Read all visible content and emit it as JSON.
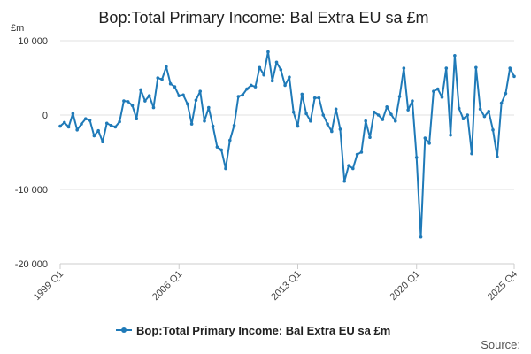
{
  "chart_data": {
    "type": "line",
    "title": "Bop:Total Primary Income: Bal Extra EU sa £m",
    "ylabel": "£m",
    "xlabel": "",
    "ylim": [
      -20000,
      10000
    ],
    "yticks": [
      10000,
      0,
      -10000,
      -20000
    ],
    "ytick_labels": [
      "10 000",
      "0",
      "-10 000",
      "-20 000"
    ],
    "xticks": [
      {
        "category": "1999 Q1",
        "label": "1999 Q1"
      },
      {
        "category": "2006 Q1",
        "label": "2006 Q1"
      },
      {
        "category": "2013 Q1",
        "label": "2013 Q1"
      },
      {
        "category": "2020 Q1",
        "label": "2020 Q1"
      },
      {
        "category": "2025 Q4",
        "label": "2025 Q4"
      }
    ],
    "grid": true,
    "legend": "bottom",
    "line_color": "#1f7ab8",
    "categories": [
      "1999 Q1",
      "1999 Q2",
      "1999 Q3",
      "1999 Q4",
      "2000 Q1",
      "2000 Q2",
      "2000 Q3",
      "2000 Q4",
      "2001 Q1",
      "2001 Q2",
      "2001 Q3",
      "2001 Q4",
      "2002 Q1",
      "2002 Q2",
      "2002 Q3",
      "2002 Q4",
      "2003 Q1",
      "2003 Q2",
      "2003 Q3",
      "2003 Q4",
      "2004 Q1",
      "2004 Q2",
      "2004 Q3",
      "2004 Q4",
      "2005 Q1",
      "2005 Q2",
      "2005 Q3",
      "2005 Q4",
      "2006 Q1",
      "2006 Q2",
      "2006 Q3",
      "2006 Q4",
      "2007 Q1",
      "2007 Q2",
      "2007 Q3",
      "2007 Q4",
      "2008 Q1",
      "2008 Q2",
      "2008 Q3",
      "2008 Q4",
      "2009 Q1",
      "2009 Q2",
      "2009 Q3",
      "2009 Q4",
      "2010 Q1",
      "2010 Q2",
      "2010 Q3",
      "2010 Q4",
      "2011 Q1",
      "2011 Q2",
      "2011 Q3",
      "2011 Q4",
      "2012 Q1",
      "2012 Q2",
      "2012 Q3",
      "2012 Q4",
      "2013 Q1",
      "2013 Q2",
      "2013 Q3",
      "2013 Q4",
      "2014 Q1",
      "2014 Q2",
      "2014 Q3",
      "2014 Q4",
      "2015 Q1",
      "2015 Q2",
      "2015 Q3",
      "2015 Q4",
      "2016 Q1",
      "2016 Q2",
      "2016 Q3",
      "2016 Q4",
      "2017 Q1",
      "2017 Q2",
      "2017 Q3",
      "2017 Q4",
      "2018 Q1",
      "2018 Q2",
      "2018 Q3",
      "2018 Q4",
      "2019 Q1",
      "2019 Q2",
      "2019 Q3",
      "2019 Q4",
      "2020 Q1",
      "2020 Q2",
      "2020 Q3",
      "2020 Q4",
      "2021 Q1",
      "2021 Q2",
      "2021 Q3",
      "2021 Q4",
      "2022 Q1",
      "2022 Q2",
      "2022 Q3",
      "2022 Q4",
      "2023 Q1",
      "2023 Q2",
      "2023 Q3",
      "2023 Q4",
      "2024 Q1",
      "2024 Q2",
      "2024 Q3",
      "2024 Q4",
      "2025 Q1",
      "2025 Q2",
      "2025 Q3",
      "2025 Q4"
    ],
    "series": [
      {
        "name": "Bop:Total Primary Income: Bal Extra EU sa £m",
        "values": [
          -1500,
          -1000,
          -1600,
          200,
          -2000,
          -1200,
          -500,
          -700,
          -2800,
          -2100,
          -3600,
          -1100,
          -1400,
          -1600,
          -900,
          1900,
          1800,
          1300,
          -500,
          3400,
          1900,
          2600,
          1000,
          5000,
          4800,
          6500,
          4200,
          3800,
          2600,
          2700,
          1500,
          -1200,
          2000,
          3200,
          -800,
          1000,
          -1500,
          -4300,
          -4700,
          -7200,
          -3400,
          -1400,
          2500,
          2700,
          3500,
          4000,
          3800,
          6400,
          5400,
          8500,
          4600,
          7100,
          6100,
          4000,
          5100,
          400,
          -1500,
          2800,
          200,
          -800,
          2300,
          2300,
          0,
          -1200,
          -2200,
          800,
          -1900,
          -8900,
          -6800,
          -7200,
          -5300,
          -5000,
          -800,
          -3000,
          400,
          0,
          -600,
          1100,
          100,
          -800,
          2500,
          6300,
          700,
          1900,
          -5700,
          -16400,
          -3100,
          -3800,
          3200,
          3500,
          2400,
          6300,
          -2700,
          8000,
          900,
          -500,
          0,
          -5200,
          6400,
          800,
          -200,
          500,
          -2000,
          -5600,
          1600,
          2900,
          6300,
          5200
        ]
      }
    ]
  },
  "legend": {
    "label": "Bop:Total Primary Income: Bal Extra EU sa £m"
  },
  "source": {
    "label": "Source:"
  }
}
